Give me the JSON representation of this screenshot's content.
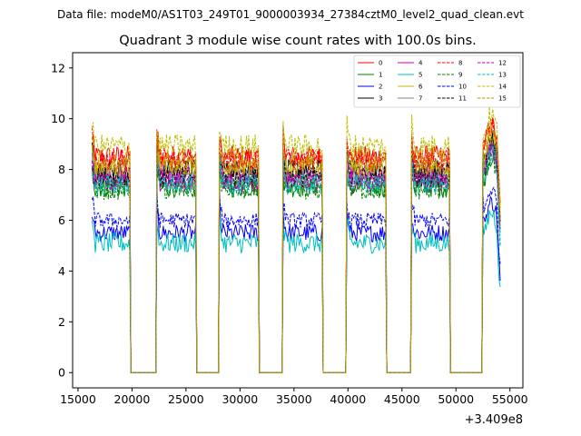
{
  "chart_data": {
    "type": "line",
    "suptitle": "Data file: modeM0/AS1T03_249T01_9000003934_27384cztM0_level2_quad_clean.evt",
    "title": "Quadrant 3 module wise count rates with 100.0s bins.",
    "xlabel": "",
    "ylabel": "",
    "x_offset_label": "+3.409e8",
    "xlim": [
      14500,
      56200
    ],
    "ylim": [
      -0.6,
      12.6
    ],
    "xticks": [
      15000,
      20000,
      25000,
      30000,
      35000,
      40000,
      45000,
      50000,
      55000
    ],
    "xtick_labels": [
      "15000",
      "20000",
      "25000",
      "30000",
      "35000",
      "40000",
      "45000",
      "50000",
      "55000"
    ],
    "yticks": [
      0,
      2,
      4,
      6,
      8,
      10,
      12
    ],
    "ytick_labels": [
      "0",
      "2",
      "4",
      "6",
      "8",
      "10",
      "12"
    ],
    "legend_position": "upper-right",
    "legend_columns": 4,
    "bin_seconds": 100,
    "segments": [
      {
        "start": 16300,
        "end": 19800,
        "x_labels": [
          "16300",
          "19800"
        ]
      },
      {
        "start": 22300,
        "end": 25900,
        "x_labels": [
          "22300",
          "25900"
        ]
      },
      {
        "start": 28100,
        "end": 31700,
        "x_labels": [
          "28100",
          "31700"
        ]
      },
      {
        "start": 34000,
        "end": 37600,
        "x_labels": [
          "34000",
          "37600"
        ]
      },
      {
        "start": 39900,
        "end": 43500,
        "x_labels": [
          "39900",
          "43500"
        ]
      },
      {
        "start": 45900,
        "end": 49400,
        "x_labels": [
          "45900",
          "49400"
        ]
      },
      {
        "start": 52500,
        "end": 54100,
        "x_labels": [
          "52500",
          "54100"
        ]
      }
    ],
    "series": [
      {
        "name": "0",
        "color": "#ff0000",
        "dash": "solid",
        "level": 8.5,
        "noise": 0.45
      },
      {
        "name": "1",
        "color": "#008000",
        "dash": "solid",
        "level": 7.3,
        "noise": 0.4
      },
      {
        "name": "2",
        "color": "#0000ff",
        "dash": "solid",
        "level": 5.5,
        "noise": 0.35
      },
      {
        "name": "3",
        "color": "#000000",
        "dash": "solid",
        "level": 8.0,
        "noise": 0.4
      },
      {
        "name": "4",
        "color": "#bf00bf",
        "dash": "solid",
        "level": 7.8,
        "noise": 0.4
      },
      {
        "name": "5",
        "color": "#00bfbf",
        "dash": "solid",
        "level": 5.1,
        "noise": 0.4
      },
      {
        "name": "6",
        "color": "#bfbf00",
        "dash": "solid",
        "level": 8.1,
        "noise": 0.4
      },
      {
        "name": "7",
        "color": "#808080",
        "dash": "solid",
        "level": 7.6,
        "noise": 0.4
      },
      {
        "name": "8",
        "color": "#ff0000",
        "dash": "dashed",
        "level": 8.4,
        "noise": 0.45
      },
      {
        "name": "9",
        "color": "#008000",
        "dash": "dashed",
        "level": 7.2,
        "noise": 0.4
      },
      {
        "name": "10",
        "color": "#0000ff",
        "dash": "dashed",
        "level": 6.0,
        "noise": 0.3
      },
      {
        "name": "11",
        "color": "#000000",
        "dash": "dashed",
        "level": 7.7,
        "noise": 0.4
      },
      {
        "name": "12",
        "color": "#bf00bf",
        "dash": "dashed",
        "level": 7.5,
        "noise": 0.4
      },
      {
        "name": "13",
        "color": "#00bfbf",
        "dash": "dashed",
        "level": 7.4,
        "noise": 0.4
      },
      {
        "name": "14",
        "color": "#bfbf00",
        "dash": "dashed",
        "level": 8.9,
        "noise": 0.5
      },
      {
        "name": "15",
        "color": "#bf8f00",
        "dash": "dashed",
        "level": 8.2,
        "noise": 0.4
      }
    ]
  }
}
